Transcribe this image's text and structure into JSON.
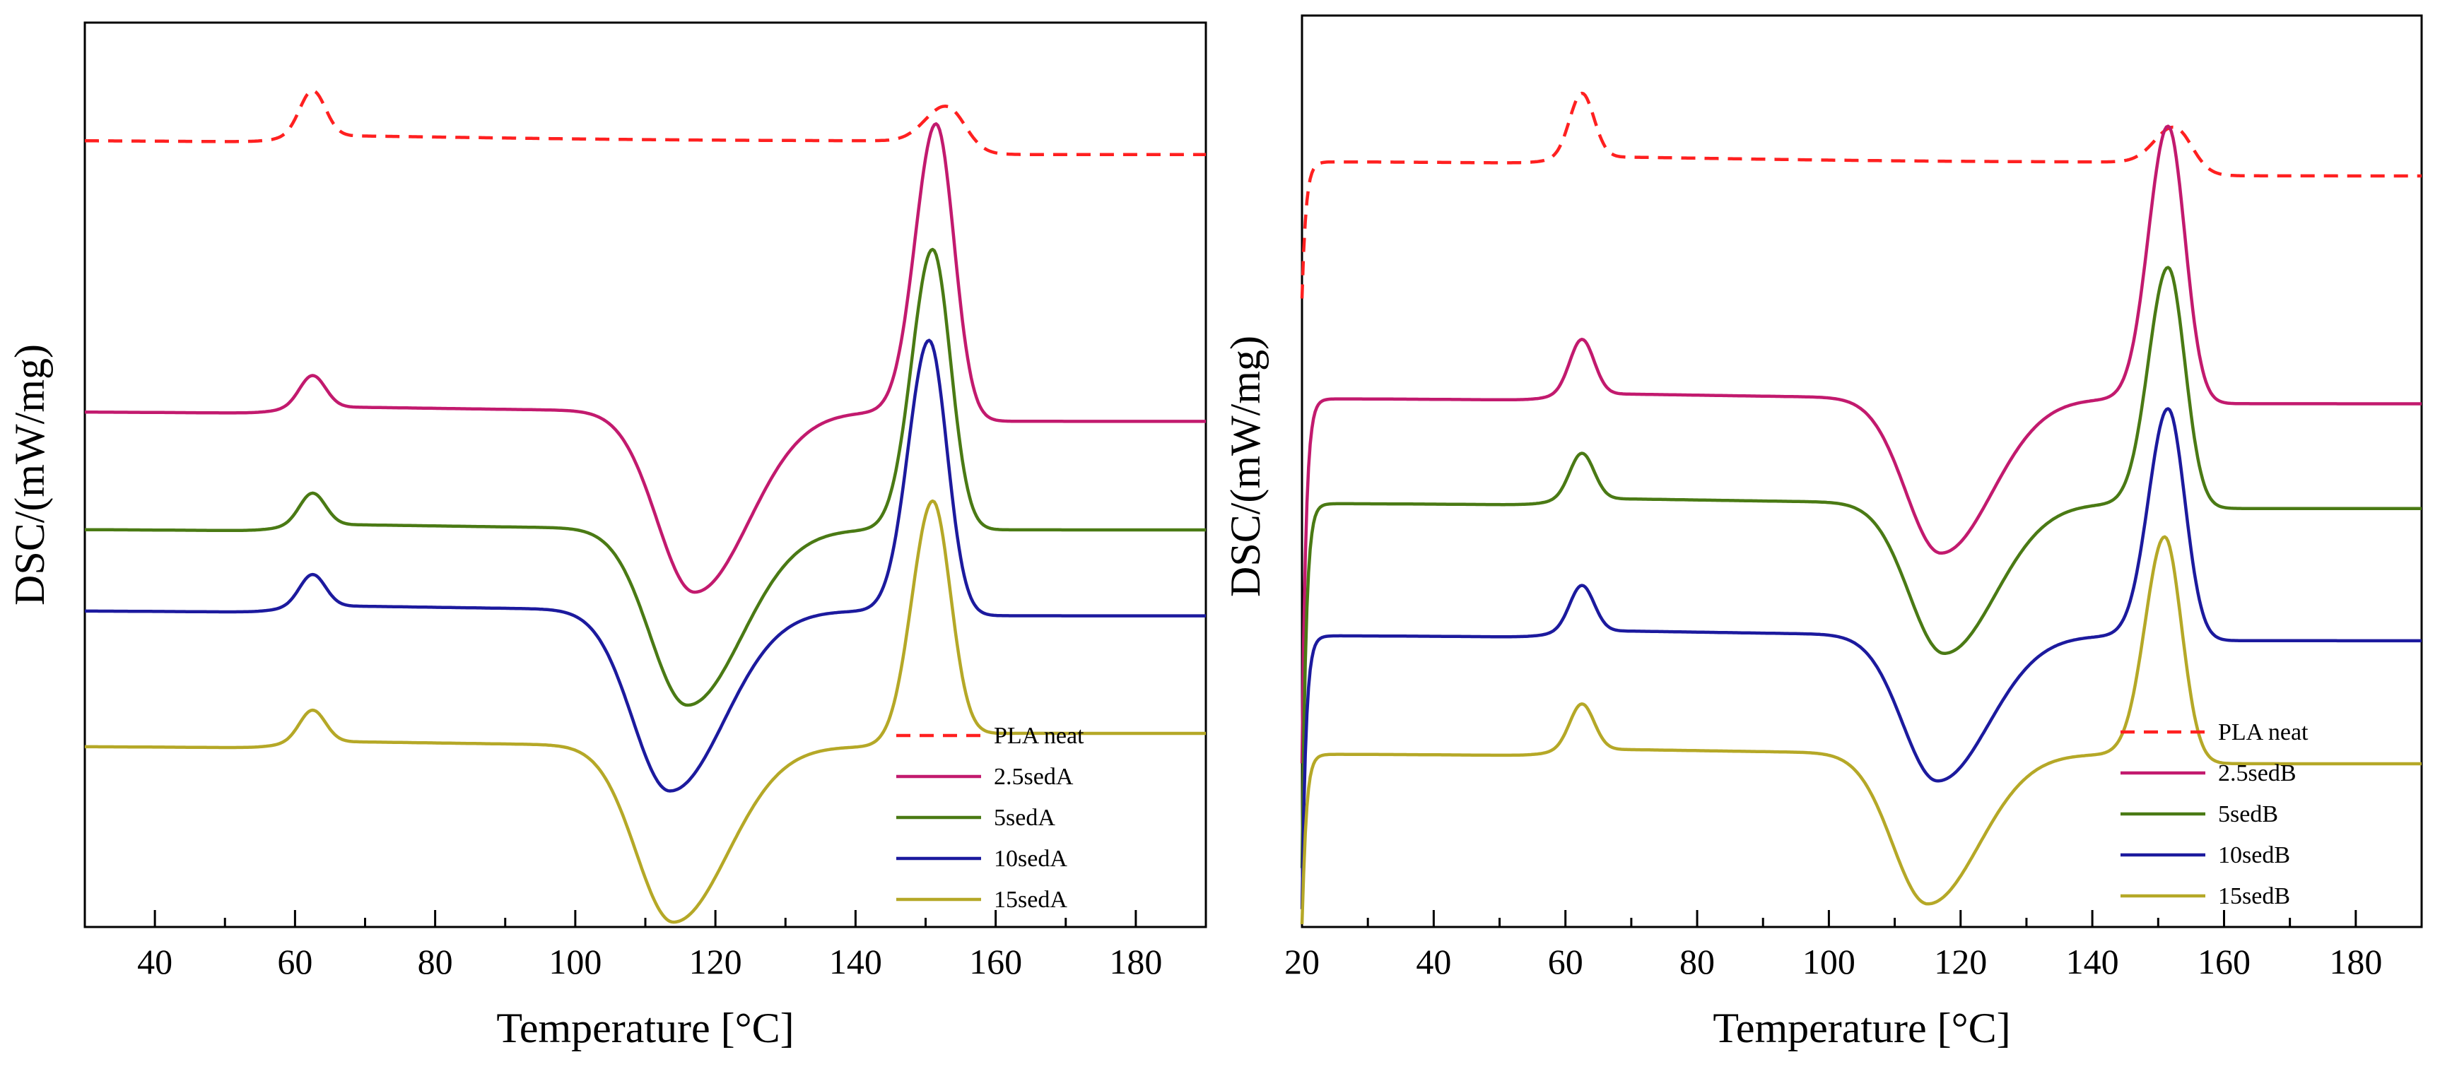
{
  "chart_data": [
    {
      "type": "line",
      "panel": "left",
      "xlabel": "Temperature [°C]",
      "ylabel": "DSC/(mW/mg)",
      "xlim": [
        30,
        190
      ],
      "ylim": [
        0,
        100
      ],
      "ticks": [
        40,
        60,
        80,
        100,
        120,
        140,
        160,
        180
      ],
      "tick_labels": [
        "40",
        "60",
        "80",
        "100",
        "120",
        "140",
        "160",
        "180"
      ],
      "legend_position": "bottom-right",
      "series": [
        {
          "name": "PLA neat",
          "color": "#ff2020",
          "dashed": true,
          "base": 87,
          "glass_step": 5,
          "cold_crystallization": 0,
          "cold_crystallization_temp": 126,
          "melt_peak": 4,
          "melt_temp": 153,
          "post_melt_shift": -1.5,
          "onset_drop": 0
        },
        {
          "name": "2.5sedA",
          "color": "#c21a6e",
          "dashed": false,
          "base": 57,
          "glass_step": 3.5,
          "cold_crystallization": 20,
          "cold_crystallization_temp": 117,
          "melt_peak": 32,
          "melt_temp": 151.5,
          "post_melt_shift": -1,
          "onset_drop": 0
        },
        {
          "name": "5sedA",
          "color": "#4a7a14",
          "dashed": false,
          "base": 44,
          "glass_step": 3.5,
          "cold_crystallization": 19.5,
          "cold_crystallization_temp": 116,
          "melt_peak": 31,
          "melt_temp": 151,
          "post_melt_shift": 0,
          "onset_drop": 0
        },
        {
          "name": "10sedA",
          "color": "#1c1a9e",
          "dashed": false,
          "base": 35,
          "glass_step": 3.5,
          "cold_crystallization": 20,
          "cold_crystallization_temp": 113.5,
          "melt_peak": 30,
          "melt_temp": 150.5,
          "post_melt_shift": -0.5,
          "onset_drop": 0
        },
        {
          "name": "15sedA",
          "color": "#b5a827",
          "dashed": false,
          "base": 20,
          "glass_step": 3.5,
          "cold_crystallization": 19.5,
          "cold_crystallization_temp": 114,
          "melt_peak": 27,
          "melt_temp": 151,
          "post_melt_shift": 1.5,
          "onset_drop": 0
        }
      ]
    },
    {
      "type": "line",
      "panel": "right",
      "xlabel": "Temperature [°C]",
      "ylabel": "DSC/(mW/mg)",
      "xlim": [
        20,
        190
      ],
      "ylim": [
        0,
        100
      ],
      "ticks": [
        20,
        40,
        60,
        80,
        100,
        120,
        140,
        160,
        180
      ],
      "tick_labels": [
        "20",
        "40",
        "60",
        "80",
        "100",
        "120",
        "140",
        "160",
        "180"
      ],
      "legend_position": "bottom-right",
      "series": [
        {
          "name": "PLA neat",
          "color": "#ff2020",
          "dashed": true,
          "base": 84,
          "glass_step": 7,
          "cold_crystallization": 0,
          "cold_crystallization_temp": 128,
          "melt_peak": 4,
          "melt_temp": 152.5,
          "post_melt_shift": -1.5,
          "onset_drop": 15
        },
        {
          "name": "2.5sedB",
          "color": "#c21a6e",
          "dashed": false,
          "base": 58,
          "glass_step": 6,
          "cold_crystallization": 17,
          "cold_crystallization_temp": 117,
          "melt_peak": 30,
          "melt_temp": 151.5,
          "post_melt_shift": -0.5,
          "onset_drop": 40
        },
        {
          "name": "5sedB",
          "color": "#4a7a14",
          "dashed": false,
          "base": 46.5,
          "glass_step": 5,
          "cold_crystallization": 16.5,
          "cold_crystallization_temp": 117.5,
          "melt_peak": 26,
          "melt_temp": 151.5,
          "post_melt_shift": -0.5,
          "onset_drop": 40
        },
        {
          "name": "10sedB",
          "color": "#1c1a9e",
          "dashed": false,
          "base": 32,
          "glass_step": 5,
          "cold_crystallization": 16,
          "cold_crystallization_temp": 116.5,
          "melt_peak": 25,
          "melt_temp": 151.5,
          "post_melt_shift": -0.5,
          "onset_drop": 30
        },
        {
          "name": "15sedB",
          "color": "#b5a827",
          "dashed": false,
          "base": 19,
          "glass_step": 5,
          "cold_crystallization": 16.5,
          "cold_crystallization_temp": 115,
          "melt_peak": 24,
          "melt_temp": 151,
          "post_melt_shift": -1,
          "onset_drop": 20
        }
      ]
    }
  ]
}
